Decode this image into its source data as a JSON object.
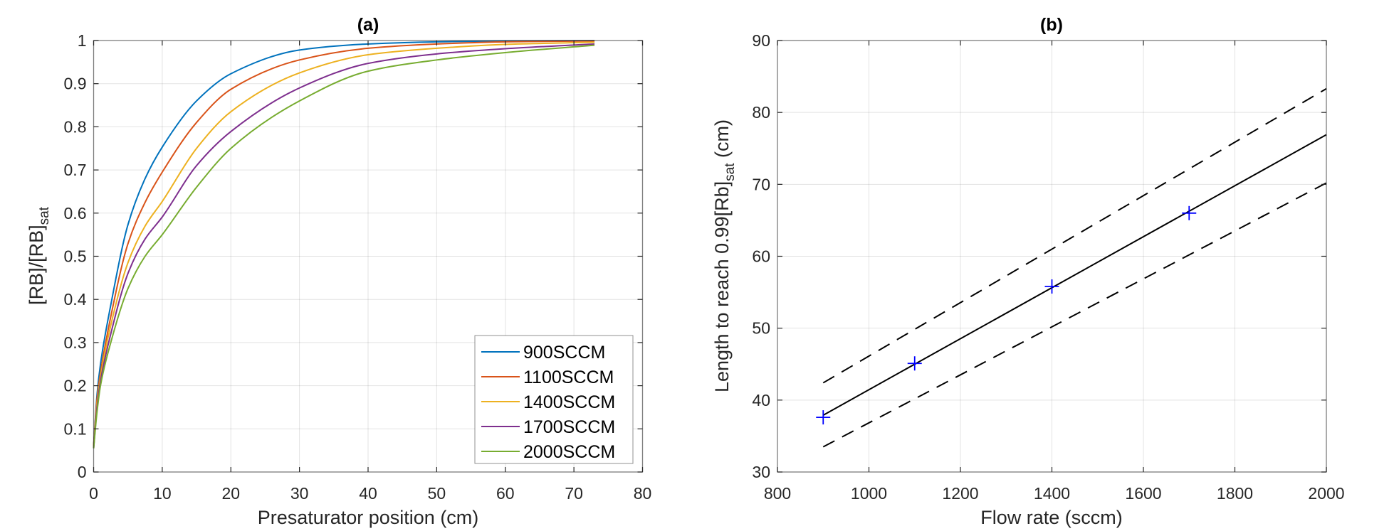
{
  "chart_data": [
    {
      "type": "line",
      "title": "(a)",
      "xlabel": "Presaturator position (cm)",
      "ylabel_main": "[RB]/[RB]",
      "ylabel_sub": "sat",
      "xlim": [
        0,
        80
      ],
      "ylim": [
        0,
        1
      ],
      "xticks": [
        "0",
        "10",
        "20",
        "30",
        "40",
        "50",
        "60",
        "70",
        "80"
      ],
      "yticks": [
        "0",
        "0.1",
        "0.2",
        "0.3",
        "0.4",
        "0.5",
        "0.6",
        "0.7",
        "0.8",
        "0.9",
        "1"
      ],
      "grid": true,
      "legend_position": "bottom-right",
      "x": [
        0,
        0.5,
        1,
        2.5,
        5,
        7.5,
        10,
        15,
        20,
        30,
        40,
        50,
        60,
        73
      ],
      "series": [
        {
          "name": "900SCCM",
          "color": "#0072BD",
          "values": [
            0.06,
            0.18,
            0.25,
            0.387,
            0.573,
            0.68,
            0.753,
            0.86,
            0.923,
            0.978,
            0.992,
            0.997,
            0.999,
            1.0
          ]
        },
        {
          "name": "1100SCCM",
          "color": "#D95319",
          "values": [
            0.06,
            0.17,
            0.23,
            0.36,
            0.529,
            0.625,
            0.695,
            0.81,
            0.887,
            0.955,
            0.982,
            0.992,
            0.997,
            0.999
          ]
        },
        {
          "name": "1400SCCM",
          "color": "#EDB120",
          "values": [
            0.06,
            0.16,
            0.22,
            0.34,
            0.485,
            0.57,
            0.627,
            0.75,
            0.835,
            0.925,
            0.967,
            0.982,
            0.991,
            0.996
          ]
        },
        {
          "name": "1700SCCM",
          "color": "#7E2F8E",
          "values": [
            0.055,
            0.15,
            0.21,
            0.32,
            0.46,
            0.54,
            0.591,
            0.71,
            0.789,
            0.89,
            0.947,
            0.969,
            0.981,
            0.992
          ]
        },
        {
          "name": "2000SCCM",
          "color": "#77AC30",
          "values": [
            0.055,
            0.14,
            0.2,
            0.3,
            0.425,
            0.5,
            0.55,
            0.66,
            0.75,
            0.86,
            0.929,
            0.955,
            0.972,
            0.989
          ]
        }
      ]
    },
    {
      "type": "scatter",
      "title": "(b)",
      "xlabel": "Flow rate (sccm)",
      "ylabel_main": "Length to reach 0.99[Rb]",
      "ylabel_sub": "sat",
      "ylabel_tail": " (cm)",
      "xlim": [
        800,
        2000
      ],
      "ylim": [
        30,
        90
      ],
      "xticks": [
        "800",
        "1000",
        "1200",
        "1400",
        "1600",
        "1800",
        "2000"
      ],
      "yticks": [
        "30",
        "40",
        "50",
        "60",
        "70",
        "80",
        "90"
      ],
      "grid": true,
      "points": {
        "x": [
          900,
          1100,
          1400,
          1700
        ],
        "y": [
          37.6,
          45.1,
          55.8,
          66.0
        ],
        "color": "#0000FF",
        "marker": "+"
      },
      "fit": {
        "x": [
          900,
          2000
        ],
        "y": [
          37.9,
          76.9
        ],
        "color": "#000000",
        "style": "solid"
      },
      "bound_upper": {
        "x": [
          900,
          2000
        ],
        "y": [
          42.4,
          83.3
        ],
        "color": "#000000",
        "style": "dashed"
      },
      "bound_lower": {
        "x": [
          900,
          2000
        ],
        "y": [
          33.5,
          70.2
        ],
        "color": "#000000",
        "style": "dashed"
      }
    }
  ]
}
